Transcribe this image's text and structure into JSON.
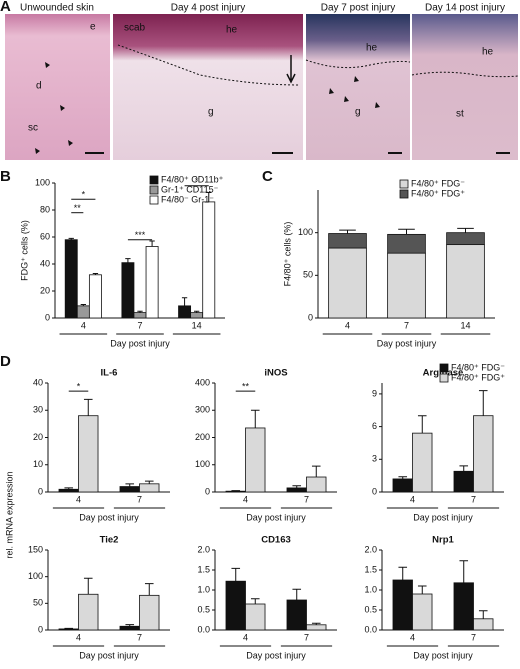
{
  "panel_labels": [
    "A",
    "B",
    "C",
    "D"
  ],
  "panel_a": {
    "images": [
      {
        "title": "Unwounded skin",
        "labels": [
          "e",
          "d",
          "sc"
        ]
      },
      {
        "title": "Day 4 post injury",
        "labels": [
          "scab",
          "he",
          "g"
        ]
      },
      {
        "title": "Day 7 post injury",
        "labels": [
          "he",
          "g"
        ]
      },
      {
        "title": "Day 14 post injury",
        "labels": [
          "he",
          "st"
        ]
      }
    ]
  },
  "panel_d": {
    "ylabel": "rel. mRNA expression",
    "legend": [
      {
        "name": "F4/80⁺ FDG⁻",
        "color": "#111111"
      },
      {
        "name": "F4/80⁺ FDG⁺",
        "color": "#d9d9d9"
      }
    ]
  },
  "chart_data": [
    {
      "type": "bar",
      "categories": [
        "4",
        "7",
        "14"
      ],
      "ylabel": "FDG⁺ cells (%)",
      "xlabel": "Day post injury",
      "ylim": [
        0,
        100
      ],
      "yticks": [
        0,
        20,
        40,
        60,
        80,
        100
      ],
      "annotations": [
        "*",
        "**",
        "***",
        "*"
      ],
      "series": [
        {
          "name": "F4/80⁺ CD11b⁺",
          "color": "#111111",
          "values": [
            58,
            41,
            9
          ],
          "errors": [
            1,
            3,
            6
          ]
        },
        {
          "name": "Gr-1⁺ CD115⁻",
          "color": "#999999",
          "values": [
            9,
            4,
            4
          ],
          "errors": [
            1,
            1,
            1
          ]
        },
        {
          "name": "F4/80⁻ Gr-1⁻",
          "color": "#ffffff",
          "values": [
            32,
            53,
            86
          ],
          "errors": [
            1,
            4,
            7
          ]
        }
      ]
    },
    {
      "type": "stacked_bar",
      "categories": [
        "4",
        "7",
        "14"
      ],
      "ylabel": "F4/80⁺ cells (%)",
      "xlabel": "Day post injury",
      "ylim": [
        0,
        150
      ],
      "yticks": [
        0,
        50,
        100
      ],
      "series": [
        {
          "name": "F4/80⁺ FDG⁻",
          "color": "#d9d9d9",
          "values": [
            82,
            76,
            86
          ],
          "errors": [
            3,
            12,
            4
          ]
        },
        {
          "name": "F4/80⁺ FDG⁺",
          "color": "#555555",
          "values": [
            17,
            22,
            14
          ],
          "errors": [
            4,
            6,
            5
          ]
        }
      ]
    },
    {
      "type": "bar",
      "title": "IL-6",
      "categories": [
        "4",
        "7"
      ],
      "xlabel": "Day post injury",
      "ylim": [
        0,
        40
      ],
      "yticks": [
        0,
        10,
        20,
        30,
        40
      ],
      "annotations": [
        "*"
      ],
      "series": [
        {
          "values": [
            1,
            2
          ],
          "errors": [
            0.5,
            1
          ]
        },
        {
          "values": [
            28,
            3
          ],
          "errors": [
            6,
            1
          ]
        }
      ]
    },
    {
      "type": "bar",
      "title": "iNOS",
      "categories": [
        "4",
        "7"
      ],
      "xlabel": "Day post injury",
      "ylim": [
        0,
        400
      ],
      "yticks": [
        0,
        100,
        200,
        300,
        400
      ],
      "annotations": [
        "**"
      ],
      "series": [
        {
          "values": [
            3,
            15
          ],
          "errors": [
            2,
            8
          ]
        },
        {
          "values": [
            235,
            55
          ],
          "errors": [
            65,
            40
          ]
        }
      ]
    },
    {
      "type": "bar",
      "title": "Arginase",
      "categories": [
        "4",
        "7"
      ],
      "xlabel": "Day post injury",
      "ylim": [
        0,
        10
      ],
      "yticks": [
        0,
        3,
        6,
        9
      ],
      "series": [
        {
          "values": [
            1.2,
            1.9
          ],
          "errors": [
            0.2,
            0.5
          ]
        },
        {
          "values": [
            5.4,
            7.0
          ],
          "errors": [
            1.6,
            2.3
          ]
        }
      ]
    },
    {
      "type": "bar",
      "title": "Tie2",
      "categories": [
        "4",
        "7"
      ],
      "xlabel": "Day post injury",
      "ylim": [
        0,
        150
      ],
      "yticks": [
        0,
        50,
        100,
        150
      ],
      "series": [
        {
          "values": [
            2,
            7
          ],
          "errors": [
            1,
            3
          ]
        },
        {
          "values": [
            67,
            65
          ],
          "errors": [
            30,
            22
          ]
        }
      ]
    },
    {
      "type": "bar",
      "title": "CD163",
      "categories": [
        "4",
        "7"
      ],
      "xlabel": "Day post injury",
      "ylim": [
        0,
        2
      ],
      "yticks": [
        {
          "value": 0,
          "label": "0.0"
        },
        0.5,
        {
          "value": 1,
          "label": "1.0"
        },
        1.5,
        {
          "value": 2,
          "label": "2.0"
        }
      ],
      "series": [
        {
          "values": [
            1.22,
            0.75
          ],
          "errors": [
            0.32,
            0.27
          ]
        },
        {
          "values": [
            0.65,
            0.13
          ],
          "errors": [
            0.13,
            0.04
          ]
        }
      ]
    },
    {
      "type": "bar",
      "title": "Nrp1",
      "categories": [
        "4",
        "7"
      ],
      "xlabel": "Day post injury",
      "ylim": [
        0,
        2
      ],
      "yticks": [
        {
          "value": 0,
          "label": "0.0"
        },
        0.5,
        {
          "value": 1,
          "label": "1.0"
        },
        1.5,
        {
          "value": 2,
          "label": "2.0"
        }
      ],
      "series": [
        {
          "values": [
            1.25,
            1.18
          ],
          "errors": [
            0.32,
            0.55
          ]
        },
        {
          "values": [
            0.9,
            0.28
          ],
          "errors": [
            0.2,
            0.2
          ]
        }
      ]
    }
  ]
}
